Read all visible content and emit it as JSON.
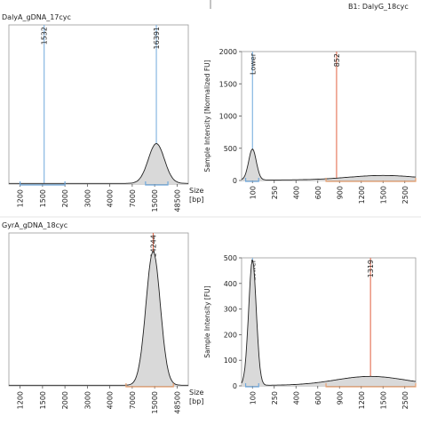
{
  "chart_data": [
    {
      "type": "area",
      "title": "DalyA_gDNA_17cyc",
      "ylabel": "",
      "xlabel": "Size\n[bp]",
      "ylim": [
        0,
        2000
      ],
      "yticks": [],
      "xticks": [
        "1200",
        "1500",
        "2000",
        "3000",
        "4000",
        "7000",
        "15000",
        "48500"
      ],
      "markers": [
        {
          "label": "1532",
          "size": 1532,
          "color": "#6fa8dc"
        },
        {
          "label": "16391",
          "size": 16391,
          "color": "#6fa8dc"
        }
      ],
      "ranges": [
        {
          "from": 1200,
          "to": 2000,
          "color": "#6fa8dc"
        },
        {
          "from": 11000,
          "to": 30000,
          "color": "#6fa8dc"
        }
      ],
      "peaks": [
        {
          "size": 16391,
          "height": 500,
          "width": 0.045
        }
      ]
    },
    {
      "type": "area",
      "title": "B1: DalyG_18cyc",
      "ylabel": "Sample Intensity [Normalized FU]",
      "xlabel": "",
      "ylim": [
        0,
        2000
      ],
      "yticks": [
        0,
        500,
        1000,
        1500,
        2000
      ],
      "xticks": [
        "100",
        "250",
        "400",
        "600",
        "900",
        "1200",
        "1500",
        "2500"
      ],
      "markers": [
        {
          "label": "Lower",
          "size": 100,
          "color": "#6fa8dc"
        },
        {
          "label": "852",
          "size": 852,
          "color": "#e06040"
        }
      ],
      "ranges": [
        {
          "from": 75,
          "to": 130,
          "color": "#6fa8dc"
        },
        {
          "from": 700,
          "to": 3500,
          "color": "#e8a070"
        }
      ],
      "peaks": [
        {
          "size": 100,
          "height": 480,
          "width": 0.022
        },
        {
          "size": 1500,
          "height": 70,
          "width": 0.2
        }
      ]
    },
    {
      "type": "area",
      "title": "GyrA_gDNA_18cyc",
      "ylabel": "",
      "xlabel": "Size\n[bp]",
      "ylim": [
        0,
        2000
      ],
      "yticks": [],
      "xticks": [
        "1200",
        "1500",
        "2000",
        "3000",
        "4000",
        "7000",
        "15000",
        "48500"
      ],
      "markers": [
        {
          "label": "14244",
          "size": 14244,
          "color": "#e06040"
        }
      ],
      "ranges": [
        {
          "from": 6000,
          "to": 40000,
          "color": "#e8a070"
        }
      ],
      "peaks": [
        {
          "size": 14244,
          "height": 1750,
          "width": 0.04
        }
      ]
    },
    {
      "type": "area",
      "title": "",
      "ylabel": "Sample Intensity [FU]",
      "xlabel": "",
      "ylim": [
        0,
        500
      ],
      "yticks": [
        0,
        100,
        200,
        300,
        400,
        500
      ],
      "xticks": [
        "100",
        "250",
        "400",
        "600",
        "900",
        "1200",
        "1500",
        "2500"
      ],
      "markers": [
        {
          "label": "Lower",
          "size": 100,
          "color": "#6fa8dc"
        },
        {
          "label": "1319",
          "size": 1319,
          "color": "#e06040"
        }
      ],
      "ranges": [
        {
          "from": 75,
          "to": 130,
          "color": "#6fa8dc"
        },
        {
          "from": 700,
          "to": 3500,
          "color": "#e8a070"
        }
      ],
      "peaks": [
        {
          "size": 100,
          "height": 490,
          "width": 0.022
        },
        {
          "size": 1319,
          "height": 35,
          "width": 0.2
        }
      ]
    }
  ]
}
